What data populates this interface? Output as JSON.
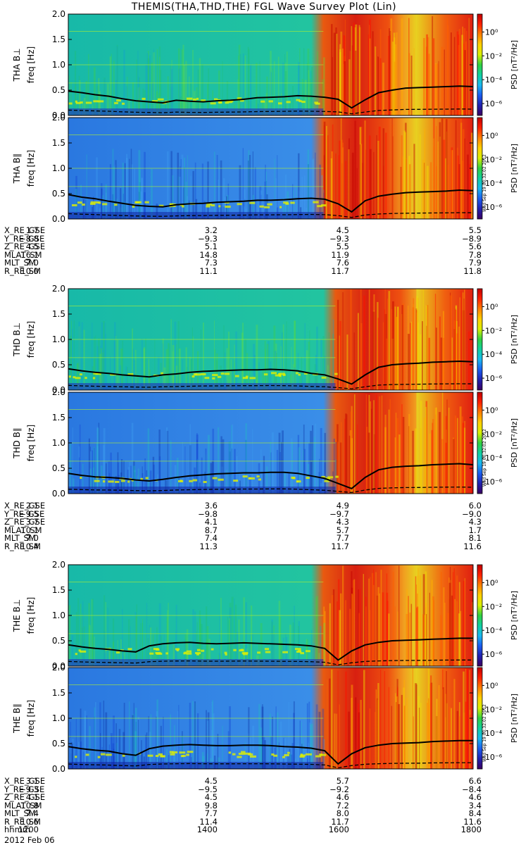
{
  "title": "THEMIS(THA,THD,THE) FGL Wave Survey Plot (Lin)",
  "colors": {
    "background": "#ffffff",
    "colormap": [
      "#3a0060",
      "#2020b0",
      "#1a5cf0",
      "#19b8f0",
      "#10d0a0",
      "#30d040",
      "#d8f000",
      "#ffd000",
      "#ff8000",
      "#ff2000",
      "#c00000"
    ]
  },
  "colorbar": {
    "label": "PSD [nT²/Hz]",
    "tick_labels": [
      "10⁰",
      "10⁻²",
      "10⁻⁴",
      "10⁻⁶"
    ],
    "tick_values": [
      0,
      -2,
      -4,
      -6
    ],
    "range": [
      -7,
      1.5
    ],
    "scale": "log"
  },
  "stamp": "Wed Sep 19 00:32:02 2012",
  "chart_data": [
    {
      "type": "heatmap",
      "probe": "THA",
      "component": "perp",
      "ylabel": "THA B⊥",
      "axis_label": "freq [Hz]",
      "y_range": [
        0,
        2
      ],
      "yticks": [
        "0.0",
        "0.5",
        "1.0",
        "1.5",
        "2.0"
      ],
      "curve": [
        0.48,
        0.45,
        0.41,
        0.38,
        0.33,
        0.29,
        0.27,
        0.25,
        0.3,
        0.28,
        0.27,
        0.29,
        0.3,
        0.32,
        0.35,
        0.36,
        0.37,
        0.39,
        0.38,
        0.36,
        0.32,
        0.15,
        0.31,
        0.45,
        0.5,
        0.54,
        0.55,
        0.56,
        0.57,
        0.58,
        0.57
      ]
    },
    {
      "type": "heatmap",
      "probe": "THA",
      "component": "par",
      "ylabel": "THA B∥",
      "axis_label": "freq [Hz]",
      "y_range": [
        0,
        2
      ],
      "yticks": [
        "0.0",
        "0.5",
        "1.0",
        "1.5",
        "2.0"
      ],
      "curve": [
        0.48,
        0.43,
        0.4,
        0.35,
        0.31,
        0.27,
        0.25,
        0.24,
        0.28,
        0.3,
        0.31,
        0.33,
        0.34,
        0.35,
        0.37,
        0.37,
        0.38,
        0.4,
        0.41,
        0.39,
        0.3,
        0.14,
        0.36,
        0.45,
        0.49,
        0.52,
        0.53,
        0.54,
        0.55,
        0.57,
        0.56
      ]
    },
    {
      "type": "heatmap",
      "probe": "THD",
      "component": "perp",
      "ylabel": "THD B⊥",
      "axis_label": "freq [Hz]",
      "y_range": [
        0,
        2
      ],
      "yticks": [
        "0.0",
        "0.5",
        "1.0",
        "1.5",
        "2.0"
      ],
      "curve": [
        0.42,
        0.38,
        0.35,
        0.33,
        0.3,
        0.28,
        0.26,
        0.3,
        0.32,
        0.35,
        0.37,
        0.38,
        0.39,
        0.4,
        0.4,
        0.41,
        0.4,
        0.38,
        0.33,
        0.3,
        0.22,
        0.12,
        0.3,
        0.45,
        0.5,
        0.52,
        0.53,
        0.55,
        0.56,
        0.57,
        0.56
      ]
    },
    {
      "type": "heatmap",
      "probe": "THD",
      "component": "par",
      "ylabel": "THD B∥",
      "axis_label": "freq [Hz]",
      "y_range": [
        0,
        2
      ],
      "yticks": [
        "0.0",
        "0.5",
        "1.0",
        "1.5",
        "2.0"
      ],
      "curve": [
        0.4,
        0.36,
        0.33,
        0.32,
        0.3,
        0.27,
        0.25,
        0.28,
        0.32,
        0.35,
        0.37,
        0.39,
        0.4,
        0.41,
        0.41,
        0.42,
        0.42,
        0.4,
        0.35,
        0.3,
        0.2,
        0.1,
        0.32,
        0.47,
        0.52,
        0.54,
        0.55,
        0.57,
        0.58,
        0.59,
        0.57
      ]
    },
    {
      "type": "heatmap",
      "probe": "THE",
      "component": "perp",
      "ylabel": "THE B⊥",
      "axis_label": "freq [Hz]",
      "y_range": [
        0,
        2
      ],
      "yticks": [
        "0.0",
        "0.5",
        "1.0",
        "1.5",
        "2.0"
      ],
      "curve": [
        0.42,
        0.38,
        0.35,
        0.33,
        0.3,
        0.28,
        0.4,
        0.44,
        0.46,
        0.47,
        0.45,
        0.44,
        0.45,
        0.46,
        0.45,
        0.44,
        0.43,
        0.42,
        0.4,
        0.35,
        0.12,
        0.3,
        0.42,
        0.47,
        0.5,
        0.51,
        0.52,
        0.53,
        0.54,
        0.55,
        0.55
      ]
    },
    {
      "type": "heatmap",
      "probe": "THE",
      "component": "par",
      "ylabel": "THE B∥",
      "axis_label": "freq [Hz]",
      "y_range": [
        0,
        2
      ],
      "yticks": [
        "0.0",
        "0.5",
        "1.0",
        "1.5",
        "2.0"
      ],
      "curve": [
        0.44,
        0.4,
        0.37,
        0.35,
        0.3,
        0.27,
        0.4,
        0.45,
        0.47,
        0.48,
        0.47,
        0.46,
        0.46,
        0.47,
        0.47,
        0.46,
        0.44,
        0.43,
        0.41,
        0.36,
        0.1,
        0.3,
        0.42,
        0.47,
        0.5,
        0.51,
        0.52,
        0.54,
        0.55,
        0.56,
        0.56
      ]
    }
  ],
  "ephemeris": [
    {
      "probe": "THA",
      "rows": [
        {
          "label": "X_RE_GSE",
          "values": [
            "1.7",
            "3.2",
            "4.5",
            "5.5"
          ]
        },
        {
          "label": "Y_RE_GSE",
          "values": [
            "−8.8",
            "−9.3",
            "−9.3",
            "−8.9"
          ]
        },
        {
          "label": "Z_RE_GSE",
          "values": [
            "4.5",
            "5.1",
            "5.5",
            "5.6"
          ]
        },
        {
          "label": "MLAT_SM",
          "values": [
            "16.1",
            "14.8",
            "11.9",
            "7.8"
          ]
        },
        {
          "label": "MLT_SM",
          "values": [
            "7.0",
            "7.3",
            "7.6",
            "7.9"
          ]
        },
        {
          "label": "R_RE_SM",
          "values": [
            "10.0",
            "11.1",
            "11.7",
            "11.8"
          ]
        }
      ]
    },
    {
      "probe": "THD",
      "rows": [
        {
          "label": "X_RE_GSE",
          "values": [
            "2.1",
            "3.6",
            "4.9",
            "6.0"
          ]
        },
        {
          "label": "Y_RE_GSE",
          "values": [
            "−9.5",
            "−9.8",
            "−9.7",
            "−9.0"
          ]
        },
        {
          "label": "Z_RE_GSE",
          "values": [
            "3.7",
            "4.1",
            "4.3",
            "4.3"
          ]
        },
        {
          "label": "MLAT_SM",
          "values": [
            "10.1",
            "8.7",
            "5.7",
            "1.7"
          ]
        },
        {
          "label": "MLT_SM",
          "values": [
            "7.0",
            "7.4",
            "7.7",
            "8.1"
          ]
        },
        {
          "label": "R_RE_SM",
          "values": [
            "10.4",
            "11.3",
            "11.7",
            "11.6"
          ]
        }
      ]
    },
    {
      "probe": "THE",
      "rows": [
        {
          "label": "X_RE_GSE",
          "values": [
            "3.1",
            "4.5",
            "5.7",
            "6.6"
          ]
        },
        {
          "label": "Y_RE_GSE",
          "values": [
            "−9.3",
            "−9.5",
            "−9.2",
            "−8.4"
          ]
        },
        {
          "label": "Z_RE_GSE",
          "values": [
            "4.1",
            "4.5",
            "4.6",
            "4.6"
          ]
        },
        {
          "label": "MLAT_SM",
          "values": [
            "10.8",
            "9.8",
            "7.2",
            "3.4"
          ]
        },
        {
          "label": "MLT_SM",
          "values": [
            "7.4",
            "7.7",
            "8.0",
            "8.4"
          ]
        },
        {
          "label": "R_RE_SM",
          "values": [
            "10.6",
            "11.4",
            "11.7",
            "11.6"
          ]
        },
        {
          "label": "hhmm",
          "values": [
            "1200",
            "1400",
            "1600",
            "1800"
          ]
        }
      ]
    }
  ],
  "date_label": "2012 Feb 06"
}
